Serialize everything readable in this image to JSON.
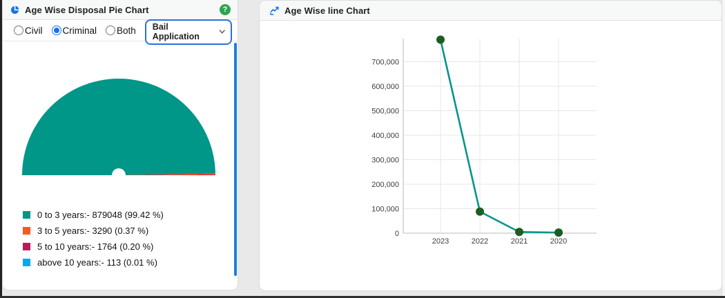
{
  "pie_panel": {
    "title": "Age Wise Disposal Pie Chart",
    "help_glyph": "?",
    "radio_options": [
      {
        "label": "Civil",
        "selected": false
      },
      {
        "label": "Criminal",
        "selected": true
      },
      {
        "label": "Both",
        "selected": false
      }
    ],
    "dropdown_value": "Bail Application",
    "legend": [
      {
        "label": "0 to 3 years:- 879048 (99.42 %)",
        "color": "#009688"
      },
      {
        "label": "3 to 5 years:- 3290 (0.37 %)",
        "color": "#FF5722"
      },
      {
        "label": "5 to 10 years:- 1764 (0.20 %)",
        "color": "#C2185B"
      },
      {
        "label": "above 10 years:- 113 (0.01 %)",
        "color": "#03A9F4"
      }
    ],
    "scrollbar_color": "#1b7ed9"
  },
  "line_panel": {
    "title": "Age Wise line Chart"
  },
  "chart_data": [
    {
      "type": "pie",
      "title": "Age Wise Disposal Pie Chart",
      "shape": "semicircle-donut",
      "labels": [
        "0 to 3 years",
        "3 to 5 years",
        "5 to 10 years",
        "above 10 years"
      ],
      "values": [
        879048,
        3290,
        1764,
        113
      ],
      "percents": [
        99.42,
        0.37,
        0.2,
        0.01
      ],
      "colors": [
        "#009688",
        "#FF5722",
        "#C2185B",
        "#03A9F4"
      ],
      "legend_position": "bottom"
    },
    {
      "type": "line",
      "title": "Age Wise line Chart",
      "x": [
        "2023",
        "2022",
        "2021",
        "2020"
      ],
      "values": [
        790000,
        88000,
        5000,
        2500
      ],
      "ylim": [
        0,
        800000
      ],
      "yticks": [
        0,
        100000,
        200000,
        300000,
        400000,
        500000,
        600000,
        700000
      ],
      "grid": true,
      "line_color": "#009688",
      "marker_color": "#1B5E20"
    }
  ]
}
